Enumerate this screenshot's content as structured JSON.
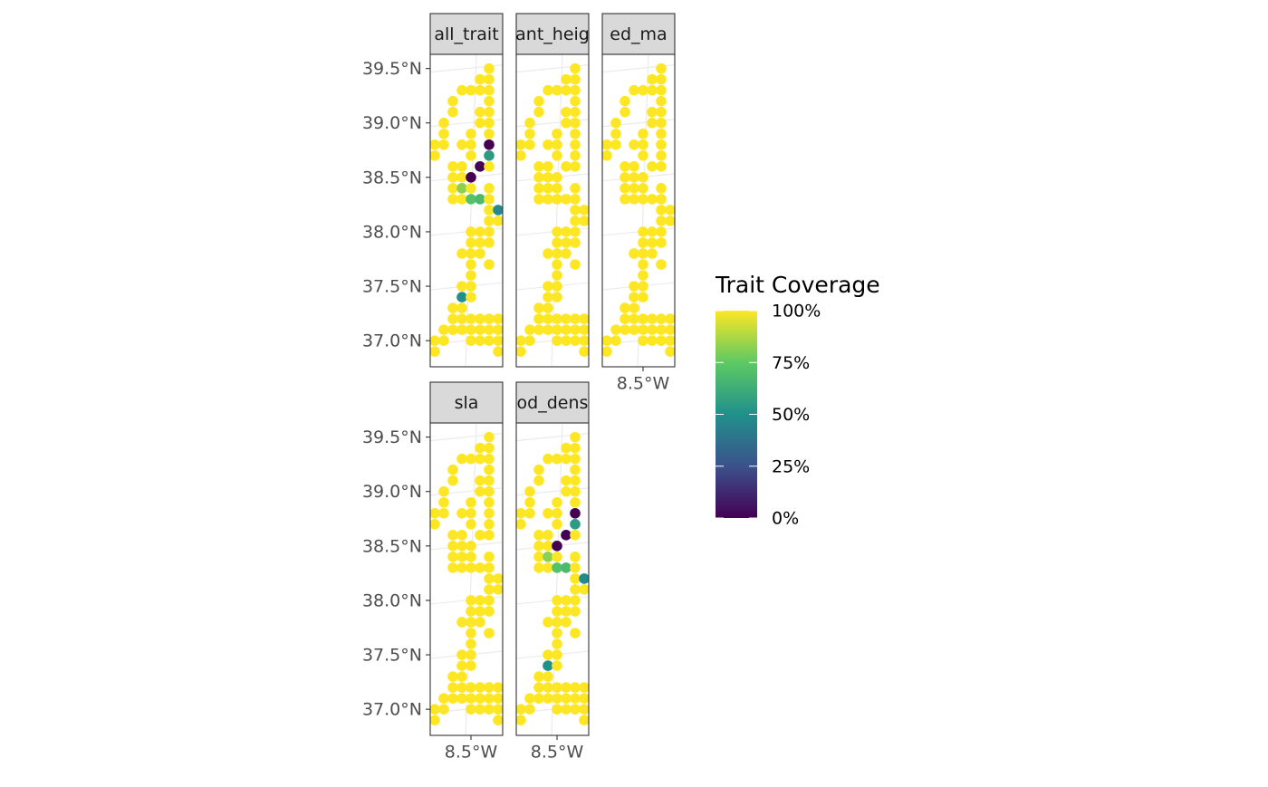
{
  "chart_data": {
    "type": "scatter",
    "x": [
      -8.3,
      -8.4,
      -8.3,
      -8.6,
      -8.5,
      -8.4,
      -8.3,
      -8.7,
      -8.3,
      -8.7,
      -8.4,
      -8.3,
      -8.8,
      -8.4,
      -8.3,
      -8.8,
      -8.5,
      -8.3,
      -8.9,
      -8.8,
      -8.6,
      -8.5,
      -8.3,
      -8.9,
      -8.5,
      -8.3,
      -8.7,
      -8.6,
      -8.4,
      -8.3,
      -8.7,
      -8.6,
      -8.5,
      -8.7,
      -8.6,
      -8.5,
      -8.3,
      -8.7,
      -8.6,
      -8.5,
      -8.4,
      -8.3,
      -8.3,
      -8.2,
      -8.3,
      -8.2,
      -8.5,
      -8.4,
      -8.3,
      -8.5,
      -8.4,
      -8.3,
      -8.6,
      -8.5,
      -8.4,
      -8.5,
      -8.3,
      -8.5,
      -8.6,
      -8.5,
      -8.6,
      -8.5,
      -8.7,
      -8.6,
      -8.7,
      -8.6,
      -8.5,
      -8.4,
      -8.3,
      -8.2,
      -8.8,
      -8.7,
      -8.6,
      -8.5,
      -8.4,
      -8.3,
      -8.2,
      -8.9,
      -8.8,
      -8.5,
      -8.4,
      -8.3,
      -8.2,
      -8.9,
      -8.2
    ],
    "y": [
      39.5,
      39.4,
      39.4,
      39.3,
      39.3,
      39.3,
      39.3,
      39.2,
      39.2,
      39.1,
      39.1,
      39.1,
      39.0,
      39.0,
      39.0,
      38.9,
      38.9,
      38.9,
      38.8,
      38.8,
      38.8,
      38.8,
      38.8,
      38.7,
      38.7,
      38.7,
      38.6,
      38.6,
      38.6,
      38.6,
      38.5,
      38.5,
      38.5,
      38.4,
      38.4,
      38.4,
      38.4,
      38.3,
      38.3,
      38.3,
      38.3,
      38.3,
      38.2,
      38.2,
      38.1,
      38.1,
      38.0,
      38.0,
      38.0,
      37.9,
      37.9,
      37.9,
      37.8,
      37.8,
      37.8,
      37.7,
      37.7,
      37.6,
      37.5,
      37.5,
      37.4,
      37.4,
      37.3,
      37.3,
      37.2,
      37.2,
      37.2,
      37.2,
      37.2,
      37.2,
      37.1,
      37.1,
      37.1,
      37.1,
      37.1,
      37.1,
      37.1,
      37.0,
      37.0,
      37.0,
      37.0,
      37.0,
      37.0,
      36.9,
      36.9
    ],
    "series": [
      {
        "name": "all_trait",
        "values": [
          100,
          100,
          100,
          100,
          100,
          100,
          100,
          100,
          100,
          100,
          100,
          100,
          100,
          100,
          100,
          100,
          100,
          100,
          100,
          100,
          100,
          100,
          0,
          100,
          100,
          55,
          100,
          100,
          0,
          100,
          100,
          100,
          0,
          100,
          82,
          100,
          100,
          100,
          100,
          72,
          68,
          100,
          100,
          48,
          100,
          100,
          100,
          100,
          100,
          100,
          100,
          100,
          100,
          100,
          100,
          100,
          100,
          100,
          100,
          100,
          50,
          100,
          100,
          100,
          100,
          100,
          100,
          100,
          100,
          100,
          100,
          100,
          100,
          100,
          100,
          100,
          100,
          100,
          100,
          100,
          100,
          100,
          100,
          100,
          100
        ]
      },
      {
        "name": "ant_heig",
        "values": [
          100,
          100,
          100,
          100,
          100,
          100,
          100,
          100,
          100,
          100,
          100,
          100,
          100,
          100,
          100,
          100,
          100,
          100,
          100,
          100,
          100,
          100,
          100,
          100,
          100,
          100,
          100,
          100,
          100,
          100,
          100,
          100,
          100,
          100,
          100,
          100,
          100,
          100,
          100,
          100,
          100,
          100,
          100,
          100,
          100,
          100,
          100,
          100,
          100,
          100,
          100,
          100,
          100,
          100,
          100,
          100,
          100,
          100,
          100,
          100,
          100,
          100,
          100,
          100,
          100,
          100,
          100,
          100,
          100,
          100,
          100,
          100,
          100,
          100,
          100,
          100,
          100,
          100,
          100,
          100,
          100,
          100,
          100,
          100,
          100
        ]
      },
      {
        "name": "ed_ma",
        "values": [
          100,
          100,
          100,
          100,
          100,
          100,
          100,
          100,
          100,
          100,
          100,
          100,
          100,
          100,
          100,
          100,
          100,
          100,
          100,
          100,
          100,
          100,
          100,
          100,
          100,
          100,
          100,
          100,
          100,
          100,
          100,
          100,
          100,
          100,
          100,
          100,
          100,
          100,
          100,
          100,
          100,
          100,
          100,
          100,
          100,
          100,
          100,
          100,
          100,
          100,
          100,
          100,
          100,
          100,
          100,
          100,
          100,
          100,
          100,
          100,
          100,
          100,
          100,
          100,
          100,
          100,
          100,
          100,
          100,
          100,
          100,
          100,
          100,
          100,
          100,
          100,
          100,
          100,
          100,
          100,
          100,
          100,
          100,
          100,
          100
        ]
      },
      {
        "name": "sla",
        "values": [
          100,
          100,
          100,
          100,
          100,
          100,
          100,
          100,
          100,
          100,
          100,
          100,
          100,
          100,
          100,
          100,
          100,
          100,
          100,
          100,
          100,
          100,
          100,
          100,
          100,
          100,
          100,
          100,
          100,
          100,
          100,
          100,
          100,
          100,
          100,
          100,
          100,
          100,
          100,
          100,
          100,
          100,
          100,
          100,
          100,
          100,
          100,
          100,
          100,
          100,
          100,
          100,
          100,
          100,
          100,
          100,
          100,
          100,
          100,
          100,
          100,
          100,
          100,
          100,
          100,
          100,
          100,
          100,
          100,
          100,
          100,
          100,
          100,
          100,
          100,
          100,
          100,
          100,
          100,
          100,
          100,
          100,
          100,
          100,
          100
        ]
      },
      {
        "name": "od_dens",
        "values": [
          100,
          100,
          100,
          100,
          100,
          100,
          100,
          100,
          100,
          100,
          100,
          100,
          100,
          100,
          100,
          100,
          100,
          100,
          100,
          100,
          100,
          100,
          0,
          100,
          100,
          55,
          100,
          100,
          0,
          100,
          100,
          100,
          0,
          100,
          82,
          100,
          100,
          100,
          100,
          72,
          68,
          100,
          100,
          48,
          100,
          100,
          100,
          100,
          100,
          100,
          100,
          100,
          100,
          100,
          100,
          100,
          100,
          100,
          100,
          100,
          50,
          100,
          100,
          100,
          100,
          100,
          100,
          100,
          100,
          100,
          100,
          100,
          100,
          100,
          100,
          100,
          100,
          100,
          100,
          100,
          100,
          100,
          100,
          100,
          100
        ]
      }
    ],
    "xlim": [
      -8.95,
      -8.15
    ],
    "ylim": [
      36.76,
      39.63
    ],
    "xticks": [
      {
        "value": -8.5,
        "label": "8.5°W"
      }
    ],
    "yticks": [
      {
        "value": 37.0,
        "label": "37.0°N"
      },
      {
        "value": 37.5,
        "label": "37.5°N"
      },
      {
        "value": 38.0,
        "label": "38.0°N"
      },
      {
        "value": 38.5,
        "label": "38.5°N"
      },
      {
        "value": 39.0,
        "label": "39.0°N"
      },
      {
        "value": 39.5,
        "label": "39.5°N"
      }
    ],
    "grid": true,
    "legend": {
      "title": "Trait Coverage",
      "lim": [
        0,
        100
      ],
      "colors": [
        "#440154",
        "#3b528b",
        "#21908c",
        "#5dc963",
        "#fde725"
      ],
      "ticks": [
        {
          "value": 0,
          "label": "0%"
        },
        {
          "value": 25,
          "label": "25%"
        },
        {
          "value": 50,
          "label": "50%"
        },
        {
          "value": 75,
          "label": "75%"
        },
        {
          "value": 100,
          "label": "100%"
        }
      ]
    }
  }
}
